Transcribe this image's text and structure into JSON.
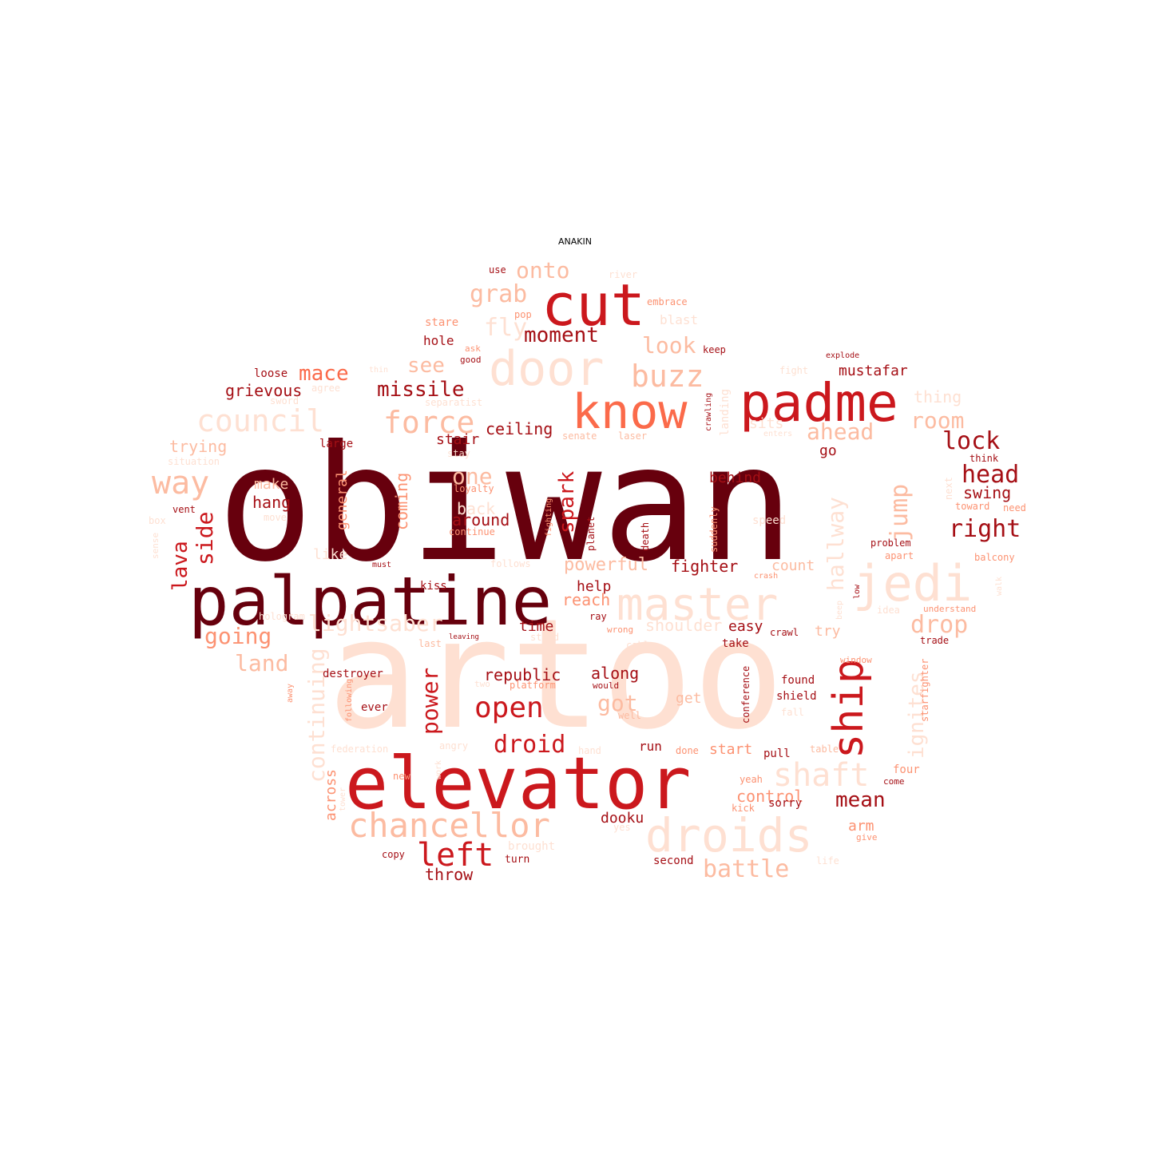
{
  "title": "ANAKIN",
  "palette": {
    "darkest": "#67000d",
    "dark": "#a50f15",
    "red": "#cb181d",
    "mid": "#ef3b2c",
    "salmon": "#fb6a4a",
    "light": "#fc9272",
    "pale": "#fcbba1",
    "faint": "#fee0d2"
  },
  "words": [
    {
      "text": "obiwan",
      "tone": "darkest"
    },
    {
      "text": "artoo",
      "tone": "faint"
    },
    {
      "text": "elevator",
      "tone": "red"
    },
    {
      "text": "palpatine",
      "tone": "darkest"
    },
    {
      "text": "cut",
      "tone": "red"
    },
    {
      "text": "padme",
      "tone": "red"
    },
    {
      "text": "know",
      "tone": "salmon"
    },
    {
      "text": "door",
      "tone": "faint"
    },
    {
      "text": "master",
      "tone": "faint"
    },
    {
      "text": "jedi",
      "tone": "faint"
    },
    {
      "text": "droids",
      "tone": "faint"
    },
    {
      "text": "ship",
      "tone": "red"
    },
    {
      "text": "chancellor",
      "tone": "pale"
    },
    {
      "text": "council",
      "tone": "faint"
    },
    {
      "text": "force",
      "tone": "pale"
    },
    {
      "text": "buzz",
      "tone": "pale"
    },
    {
      "text": "left",
      "tone": "red"
    },
    {
      "text": "open",
      "tone": "red"
    },
    {
      "text": "way",
      "tone": "pale"
    },
    {
      "text": "shaft",
      "tone": "faint"
    },
    {
      "text": "onto",
      "tone": "pale"
    },
    {
      "text": "grab",
      "tone": "pale"
    },
    {
      "text": "moment",
      "tone": "dark"
    },
    {
      "text": "look",
      "tone": "pale"
    },
    {
      "text": "fly",
      "tone": "faint"
    },
    {
      "text": "missile",
      "tone": "dark"
    },
    {
      "text": "see",
      "tone": "pale"
    },
    {
      "text": "mace",
      "tone": "salmon"
    },
    {
      "text": "grievous",
      "tone": "dark"
    },
    {
      "text": "droid",
      "tone": "red"
    },
    {
      "text": "battle",
      "tone": "pale"
    },
    {
      "text": "right",
      "tone": "dark"
    },
    {
      "text": "lock",
      "tone": "dark"
    },
    {
      "text": "room",
      "tone": "pale"
    },
    {
      "text": "ahead",
      "tone": "pale"
    },
    {
      "text": "head",
      "tone": "dark"
    },
    {
      "text": "jump",
      "tone": "pale"
    },
    {
      "text": "hallway",
      "tone": "faint"
    },
    {
      "text": "drop",
      "tone": "pale"
    },
    {
      "text": "mean",
      "tone": "dark"
    },
    {
      "text": "going",
      "tone": "light"
    },
    {
      "text": "lava",
      "tone": "red"
    },
    {
      "text": "side",
      "tone": "red"
    },
    {
      "text": "land",
      "tone": "pale"
    },
    {
      "text": "lightsaber",
      "tone": "faint"
    },
    {
      "text": "power",
      "tone": "red"
    },
    {
      "text": "got",
      "tone": "pale"
    },
    {
      "text": "spark",
      "tone": "red"
    },
    {
      "text": "one",
      "tone": "pale"
    },
    {
      "text": "powerful",
      "tone": "pale"
    },
    {
      "text": "continuing",
      "tone": "faint"
    },
    {
      "text": "ignites",
      "tone": "faint"
    },
    {
      "text": "swing",
      "tone": "dark"
    },
    {
      "text": "mustafar",
      "tone": "dark"
    },
    {
      "text": "thing",
      "tone": "faint"
    },
    {
      "text": "ceiling",
      "tone": "dark"
    },
    {
      "text": "stair",
      "tone": "dark"
    },
    {
      "text": "trying",
      "tone": "pale"
    },
    {
      "text": "make",
      "tone": "pale"
    },
    {
      "text": "hang",
      "tone": "dark"
    },
    {
      "text": "general",
      "tone": "light"
    },
    {
      "text": "coming",
      "tone": "light"
    },
    {
      "text": "around",
      "tone": "dark"
    },
    {
      "text": "behind",
      "tone": "dark"
    },
    {
      "text": "fighter",
      "tone": "dark"
    },
    {
      "text": "count",
      "tone": "pale"
    },
    {
      "text": "help",
      "tone": "dark"
    },
    {
      "text": "reach",
      "tone": "light"
    },
    {
      "text": "time",
      "tone": "dark"
    },
    {
      "text": "easy",
      "tone": "dark"
    },
    {
      "text": "try",
      "tone": "pale"
    },
    {
      "text": "republic",
      "tone": "dark"
    },
    {
      "text": "along",
      "tone": "dark"
    },
    {
      "text": "start",
      "tone": "light"
    },
    {
      "text": "control",
      "tone": "light"
    },
    {
      "text": "dooku",
      "tone": "dark"
    },
    {
      "text": "run",
      "tone": "dark"
    },
    {
      "text": "get",
      "tone": "pale"
    },
    {
      "text": "across",
      "tone": "light"
    },
    {
      "text": "arm",
      "tone": "light"
    },
    {
      "text": "throw",
      "tone": "dark"
    },
    {
      "text": "hole",
      "tone": "dark"
    },
    {
      "text": "stare",
      "tone": "light"
    },
    {
      "text": "use",
      "tone": "dark"
    },
    {
      "text": "river",
      "tone": "faint"
    },
    {
      "text": "embrace",
      "tone": "light"
    },
    {
      "text": "blast",
      "tone": "faint"
    },
    {
      "text": "pop",
      "tone": "light"
    },
    {
      "text": "keep",
      "tone": "dark"
    },
    {
      "text": "ask",
      "tone": "light"
    },
    {
      "text": "good",
      "tone": "dark"
    },
    {
      "text": "explode",
      "tone": "dark"
    },
    {
      "text": "loose",
      "tone": "dark"
    },
    {
      "text": "agree",
      "tone": "faint"
    },
    {
      "text": "sword",
      "tone": "faint"
    },
    {
      "text": "separatist",
      "tone": "faint"
    },
    {
      "text": "fight",
      "tone": "faint"
    },
    {
      "text": "large",
      "tone": "dark"
    },
    {
      "text": "stay",
      "tone": "faint"
    },
    {
      "text": "situation",
      "tone": "faint"
    },
    {
      "text": "loyalty",
      "tone": "light"
    },
    {
      "text": "senate",
      "tone": "pale"
    },
    {
      "text": "laser",
      "tone": "pale"
    },
    {
      "text": "sits",
      "tone": "faint"
    },
    {
      "text": "enters",
      "tone": "faint"
    },
    {
      "text": "go",
      "tone": "dark"
    },
    {
      "text": "think",
      "tone": "dark"
    },
    {
      "text": "toward",
      "tone": "light"
    },
    {
      "text": "need",
      "tone": "light"
    },
    {
      "text": "next",
      "tone": "faint"
    },
    {
      "text": "vent",
      "tone": "dark"
    },
    {
      "text": "box",
      "tone": "faint"
    },
    {
      "text": "move",
      "tone": "faint"
    },
    {
      "text": "sense",
      "tone": "faint"
    },
    {
      "text": "back",
      "tone": "faint"
    },
    {
      "text": "continue",
      "tone": "light"
    },
    {
      "text": "like",
      "tone": "faint"
    },
    {
      "text": "must",
      "tone": "dark"
    },
    {
      "text": "follows",
      "tone": "faint"
    },
    {
      "text": "kiss",
      "tone": "dark"
    },
    {
      "text": "hologram",
      "tone": "faint"
    },
    {
      "text": "last",
      "tone": "pale"
    },
    {
      "text": "leaving",
      "tone": "dark"
    },
    {
      "text": "stand",
      "tone": "faint"
    },
    {
      "text": "ray",
      "tone": "dark"
    },
    {
      "text": "wrong",
      "tone": "light"
    },
    {
      "text": "shoulder",
      "tone": "faint"
    },
    {
      "text": "cable",
      "tone": "faint"
    },
    {
      "text": "take",
      "tone": "dark"
    },
    {
      "text": "crawl",
      "tone": "dark"
    },
    {
      "text": "trade",
      "tone": "dark"
    },
    {
      "text": "understand",
      "tone": "light"
    },
    {
      "text": "problem",
      "tone": "dark"
    },
    {
      "text": "apart",
      "tone": "light"
    },
    {
      "text": "balcony",
      "tone": "light"
    },
    {
      "text": "speed",
      "tone": "faint"
    },
    {
      "text": "crash",
      "tone": "light"
    },
    {
      "text": "idea",
      "tone": "faint"
    },
    {
      "text": "destroyer",
      "tone": "dark"
    },
    {
      "text": "platform",
      "tone": "light"
    },
    {
      "text": "would",
      "tone": "dark"
    },
    {
      "text": "two",
      "tone": "faint"
    },
    {
      "text": "ever",
      "tone": "dark"
    },
    {
      "text": "well",
      "tone": "pale"
    },
    {
      "text": "found",
      "tone": "dark"
    },
    {
      "text": "shield",
      "tone": "dark"
    },
    {
      "text": "fall",
      "tone": "faint"
    },
    {
      "text": "window",
      "tone": "light"
    },
    {
      "text": "federation",
      "tone": "faint"
    },
    {
      "text": "angry",
      "tone": "faint"
    },
    {
      "text": "hand",
      "tone": "faint"
    },
    {
      "text": "done",
      "tone": "light"
    },
    {
      "text": "pull",
      "tone": "dark"
    },
    {
      "text": "table",
      "tone": "pale"
    },
    {
      "text": "new",
      "tone": "light"
    },
    {
      "text": "yeah",
      "tone": "light"
    },
    {
      "text": "four",
      "tone": "light"
    },
    {
      "text": "come",
      "tone": "dark"
    },
    {
      "text": "kick",
      "tone": "light"
    },
    {
      "text": "sorry",
      "tone": "dark"
    },
    {
      "text": "yes",
      "tone": "faint"
    },
    {
      "text": "give",
      "tone": "light"
    },
    {
      "text": "copy",
      "tone": "dark"
    },
    {
      "text": "brought",
      "tone": "faint"
    },
    {
      "text": "turn",
      "tone": "dark"
    },
    {
      "text": "second",
      "tone": "dark"
    },
    {
      "text": "life",
      "tone": "faint"
    },
    {
      "text": "away",
      "tone": "light"
    },
    {
      "text": "following",
      "tone": "light"
    },
    {
      "text": "tower",
      "tone": "faint"
    },
    {
      "text": "work",
      "tone": "faint"
    },
    {
      "text": "conference",
      "tone": "dark"
    },
    {
      "text": "starfighter",
      "tone": "light"
    },
    {
      "text": "fighting",
      "tone": "light"
    },
    {
      "text": "planet",
      "tone": "dark"
    },
    {
      "text": "death",
      "tone": "dark"
    },
    {
      "text": "suddenly",
      "tone": "light"
    },
    {
      "text": "crawling",
      "tone": "dark"
    },
    {
      "text": "landing",
      "tone": "faint"
    },
    {
      "text": "thin",
      "tone": "faint"
    },
    {
      "text": "low",
      "tone": "dark"
    },
    {
      "text": "walk",
      "tone": "faint"
    },
    {
      "text": "beep",
      "tone": "faint"
    }
  ]
}
